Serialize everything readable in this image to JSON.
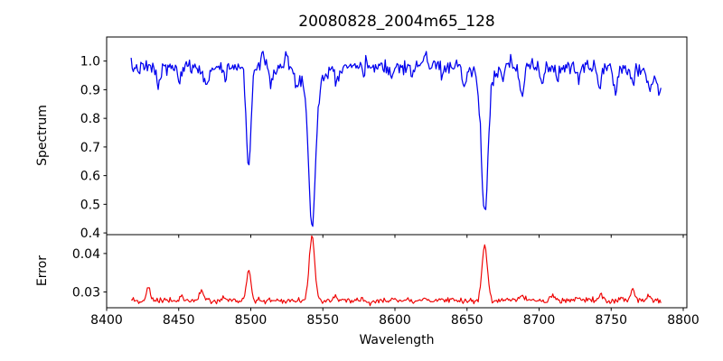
{
  "title": "20080828_2004m65_128",
  "chart_data": {
    "type": "line",
    "title": "20080828_2004m65_128",
    "xlabel": "Wavelength",
    "x_ticks": [
      8400,
      8450,
      8500,
      8550,
      8600,
      8650,
      8700,
      8750,
      8800
    ],
    "xlim": [
      8400,
      8802.5
    ],
    "x_data_range": [
      8417,
      8785
    ],
    "x_step": 0.75,
    "noise_seed": 7,
    "grid": false,
    "legend": "none",
    "panels": [
      {
        "name": "spectrum",
        "ylabel": "Spectrum",
        "ylim": [
          0.394,
          1.084
        ],
        "y_ticks": [
          "1.0",
          "0.9",
          "0.8",
          "0.7",
          "0.6",
          "0.5",
          "0.4"
        ],
        "series": {
          "name": "spectrum-flux",
          "color": "#0000ee",
          "base": 0.974,
          "noise_sigma": 0.013,
          "shape": [
            [
              8600,
              0.012,
              90
            ],
            [
              8795,
              -0.05,
              12
            ]
          ],
          "features": [
            [
              8436,
              -0.065,
              1.2
            ],
            [
              8451,
              -0.06,
              1.1
            ],
            [
              8469,
              -0.085,
              1.3
            ],
            [
              8482,
              -0.04,
              1.0
            ],
            [
              8498.5,
              -0.345,
              1.6
            ],
            [
              8508,
              0.055,
              0.9
            ],
            [
              8514,
              -0.05,
              1.1
            ],
            [
              8525,
              0.04,
              0.8
            ],
            [
              8531,
              -0.05,
              1.1
            ],
            [
              8542.5,
              -0.47,
              2.3
            ],
            [
              8542.5,
              -0.08,
              7.0
            ],
            [
              8560,
              -0.05,
              1.1
            ],
            [
              8578,
              -0.04,
              1.0
            ],
            [
              8598,
              -0.05,
              1.1
            ],
            [
              8612,
              -0.045,
              1.0
            ],
            [
              8621,
              0.045,
              0.9
            ],
            [
              8633,
              -0.04,
              1.0
            ],
            [
              8648,
              -0.075,
              1.3
            ],
            [
              8662.3,
              -0.46,
              2.1
            ],
            [
              8662.3,
              -0.065,
              6.0
            ],
            [
              8675,
              -0.05,
              1.0
            ],
            [
              8688,
              -0.1,
              1.5
            ],
            [
              8702,
              -0.06,
              1.2
            ],
            [
              8713,
              -0.05,
              1.0
            ],
            [
              8728,
              -0.05,
              1.0
            ],
            [
              8742,
              -0.06,
              1.2
            ],
            [
              8753,
              -0.085,
              1.3
            ],
            [
              8765,
              -0.05,
              1.0
            ],
            [
              8777,
              -0.065,
              1.2
            ],
            [
              8784,
              -0.05,
              1.5
            ]
          ]
        }
      },
      {
        "name": "error",
        "ylabel": "Error",
        "ylim": [
          0.0259,
          0.0449
        ],
        "y_ticks": [
          "0.04",
          "0.03"
        ],
        "series": {
          "name": "error-sigma",
          "color": "#ee0000",
          "base": 0.0277,
          "noise_sigma": 0.00035,
          "shape": [],
          "features": [
            [
              8429,
              0.0034,
              1.4
            ],
            [
              8452,
              0.0012,
              1.2
            ],
            [
              8466,
              0.0028,
              1.5
            ],
            [
              8481,
              0.001,
              1.2
            ],
            [
              8498.5,
              0.0078,
              1.6
            ],
            [
              8542.5,
              0.0168,
              1.9
            ],
            [
              8558,
              0.0008,
              1.5
            ],
            [
              8577,
              0.0006,
              1.5
            ],
            [
              8600,
              0.0007,
              2.0
            ],
            [
              8620,
              0.0009,
              1.5
            ],
            [
              8640,
              0.0007,
              1.5
            ],
            [
              8662.3,
              0.0148,
              1.8
            ],
            [
              8688,
              0.0016,
              1.5
            ],
            [
              8710,
              0.0013,
              1.5
            ],
            [
              8726,
              0.0008,
              1.5
            ],
            [
              8743,
              0.0016,
              1.5
            ],
            [
              8757,
              0.001,
              1.2
            ],
            [
              8765,
              0.0028,
              1.5
            ],
            [
              8776,
              0.0015,
              1.2
            ]
          ]
        }
      }
    ],
    "notable_features": {
      "absorption_minima": [
        {
          "wavelength": 8498,
          "spectrum": 0.63
        },
        {
          "wavelength": 8542,
          "spectrum": 0.43
        },
        {
          "wavelength": 8662,
          "spectrum": 0.46
        }
      ],
      "error_baseline": 0.028,
      "error_peak_max": 0.0445
    }
  }
}
